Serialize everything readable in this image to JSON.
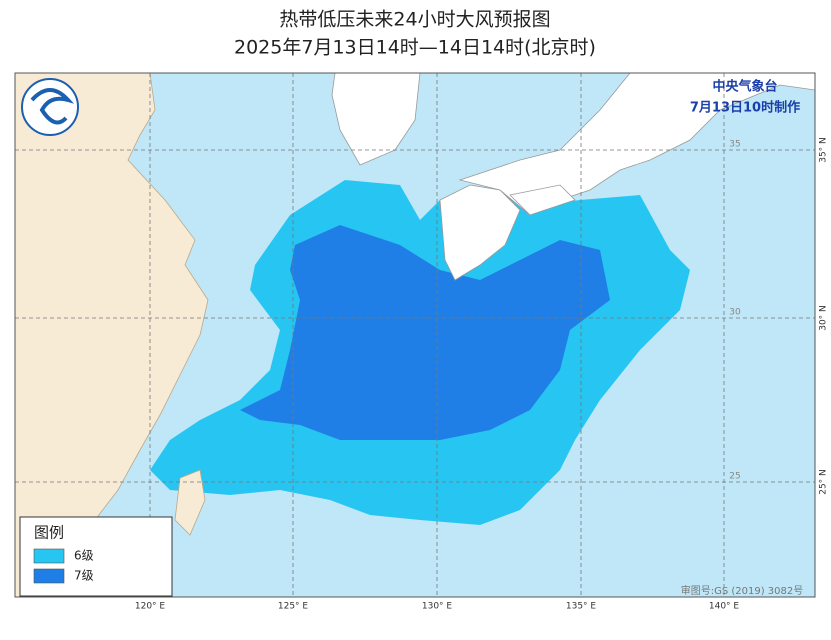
{
  "header": {
    "title": "热带低压未来24小时大风预报图",
    "subtitle": "2025年7月13日14时—14日14时(北京时)"
  },
  "issuer": {
    "agency": "中央气象台",
    "issued": "7月13日10时制作"
  },
  "lon_labels": [
    "120° E",
    "125° E",
    "130° E",
    "135° E",
    "140° E"
  ],
  "lat_labels": [
    "35° N",
    "30° N",
    "25° N"
  ],
  "inner_lat_labels": [
    "35",
    "30",
    "25"
  ],
  "legend": {
    "title": "图例",
    "items": [
      {
        "label": "6级",
        "color": "#27c6f2"
      },
      {
        "label": "7级",
        "color": "#1f7fe6"
      }
    ]
  },
  "credit": "审图号:GS (2019) 3082号"
}
